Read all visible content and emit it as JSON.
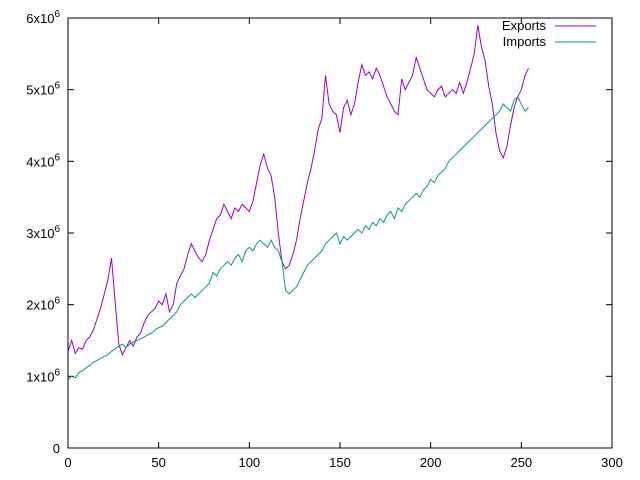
{
  "chart_data": {
    "type": "line",
    "xlim": [
      0,
      300
    ],
    "ylim": [
      0,
      6000000
    ],
    "x_ticks": [
      {
        "value": 0,
        "label": "0"
      },
      {
        "value": 50,
        "label": "50"
      },
      {
        "value": 100,
        "label": "100"
      },
      {
        "value": 150,
        "label": "150"
      },
      {
        "value": 200,
        "label": "200"
      },
      {
        "value": 250,
        "label": "250"
      },
      {
        "value": 300,
        "label": "300"
      }
    ],
    "y_ticks": [
      {
        "value": 0,
        "label": "0",
        "base": "0",
        "exp": ""
      },
      {
        "value": 1000000,
        "label": "1x10^6",
        "base": "1x10",
        "exp": "6"
      },
      {
        "value": 2000000,
        "label": "2x10^6",
        "base": "2x10",
        "exp": "6"
      },
      {
        "value": 3000000,
        "label": "3x10^6",
        "base": "3x10",
        "exp": "6"
      },
      {
        "value": 4000000,
        "label": "4x10^6",
        "base": "4x10",
        "exp": "6"
      },
      {
        "value": 5000000,
        "label": "5x10^6",
        "base": "5x10",
        "exp": "6"
      },
      {
        "value": 6000000,
        "label": "6x10^6",
        "base": "6x10",
        "exp": "6"
      }
    ],
    "grid": false,
    "legend_position": "top-right",
    "series": [
      {
        "name": "Exports",
        "color": "#9400d3",
        "x": [
          0,
          2,
          4,
          6,
          8,
          10,
          12,
          14,
          16,
          18,
          20,
          22,
          24,
          26,
          28,
          30,
          32,
          34,
          36,
          38,
          40,
          42,
          44,
          46,
          48,
          50,
          52,
          54,
          56,
          58,
          60,
          62,
          64,
          66,
          68,
          70,
          72,
          74,
          76,
          78,
          80,
          82,
          84,
          86,
          88,
          90,
          92,
          94,
          96,
          98,
          100,
          102,
          104,
          106,
          108,
          110,
          112,
          114,
          116,
          118,
          120,
          122,
          124,
          126,
          128,
          130,
          132,
          134,
          136,
          138,
          140,
          142,
          144,
          146,
          148,
          150,
          152,
          154,
          156,
          158,
          160,
          162,
          164,
          166,
          168,
          170,
          172,
          174,
          176,
          178,
          180,
          182,
          184,
          186,
          188,
          190,
          192,
          194,
          196,
          198,
          200,
          202,
          204,
          206,
          208,
          210,
          212,
          214,
          216,
          218,
          220,
          222,
          224,
          226,
          228,
          230,
          232,
          234,
          236,
          238,
          240,
          242,
          244,
          246,
          248,
          250,
          252,
          254
        ],
        "values": [
          1350000,
          1500000,
          1320000,
          1400000,
          1380000,
          1500000,
          1550000,
          1650000,
          1800000,
          1950000,
          2150000,
          2350000,
          2650000,
          2050000,
          1450000,
          1300000,
          1400000,
          1500000,
          1420000,
          1550000,
          1600000,
          1750000,
          1850000,
          1900000,
          1950000,
          2050000,
          2000000,
          2150000,
          1900000,
          2000000,
          2300000,
          2400000,
          2500000,
          2700000,
          2850000,
          2750000,
          2650000,
          2600000,
          2700000,
          2900000,
          3050000,
          3200000,
          3250000,
          3400000,
          3300000,
          3200000,
          3350000,
          3300000,
          3400000,
          3350000,
          3300000,
          3450000,
          3700000,
          3950000,
          4100000,
          3900000,
          3800000,
          3500000,
          3000000,
          2600000,
          2500000,
          2550000,
          2700000,
          2900000,
          3200000,
          3450000,
          3700000,
          3900000,
          4150000,
          4450000,
          4600000,
          5200000,
          4800000,
          4700000,
          4650000,
          4400000,
          4750000,
          4850000,
          4650000,
          4800000,
          5100000,
          5350000,
          5200000,
          5250000,
          5150000,
          5300000,
          5200000,
          5050000,
          4900000,
          4800000,
          4700000,
          4650000,
          5150000,
          5000000,
          5100000,
          5200000,
          5450000,
          5300000,
          5150000,
          5000000,
          4950000,
          4900000,
          5000000,
          5050000,
          4900000,
          4950000,
          5000000,
          4950000,
          5100000,
          4950000,
          5100000,
          5300000,
          5500000,
          5900000,
          5600000,
          5400000,
          5050000,
          4800000,
          4400000,
          4150000,
          4050000,
          4200000,
          4500000,
          4750000,
          4900000,
          5000000,
          5200000,
          5300000
        ]
      },
      {
        "name": "Imports",
        "color": "#009e73",
        "x": [
          0,
          2,
          4,
          6,
          8,
          10,
          12,
          14,
          16,
          18,
          20,
          22,
          24,
          26,
          28,
          30,
          32,
          34,
          36,
          38,
          40,
          42,
          44,
          46,
          48,
          50,
          52,
          54,
          56,
          58,
          60,
          62,
          64,
          66,
          68,
          70,
          72,
          74,
          76,
          78,
          80,
          82,
          84,
          86,
          88,
          90,
          92,
          94,
          96,
          98,
          100,
          102,
          104,
          106,
          108,
          110,
          112,
          114,
          116,
          118,
          120,
          122,
          124,
          126,
          128,
          130,
          132,
          134,
          136,
          138,
          140,
          142,
          144,
          146,
          148,
          150,
          152,
          154,
          156,
          158,
          160,
          162,
          164,
          166,
          168,
          170,
          172,
          174,
          176,
          178,
          180,
          182,
          184,
          186,
          188,
          190,
          192,
          194,
          196,
          198,
          200,
          202,
          204,
          206,
          208,
          210,
          212,
          214,
          216,
          218,
          220,
          222,
          224,
          226,
          228,
          230,
          232,
          234,
          236,
          238,
          240,
          242,
          244,
          246,
          248,
          250,
          252,
          254
        ],
        "values": [
          950000,
          1000000,
          980000,
          1050000,
          1080000,
          1120000,
          1150000,
          1200000,
          1220000,
          1250000,
          1280000,
          1300000,
          1350000,
          1380000,
          1420000,
          1450000,
          1400000,
          1450000,
          1480000,
          1500000,
          1520000,
          1550000,
          1580000,
          1600000,
          1650000,
          1680000,
          1700000,
          1750000,
          1800000,
          1850000,
          1900000,
          2000000,
          2050000,
          2100000,
          2150000,
          2100000,
          2150000,
          2200000,
          2250000,
          2300000,
          2450000,
          2400000,
          2500000,
          2550000,
          2600000,
          2550000,
          2650000,
          2700000,
          2600000,
          2750000,
          2800000,
          2750000,
          2850000,
          2900000,
          2850000,
          2800000,
          2900000,
          2800000,
          2750000,
          2600000,
          2200000,
          2150000,
          2200000,
          2250000,
          2350000,
          2450000,
          2550000,
          2600000,
          2650000,
          2700000,
          2750000,
          2850000,
          2900000,
          2950000,
          3000000,
          2850000,
          2950000,
          2900000,
          2950000,
          3000000,
          3050000,
          3000000,
          3100000,
          3050000,
          3150000,
          3100000,
          3200000,
          3150000,
          3250000,
          3300000,
          3200000,
          3350000,
          3300000,
          3400000,
          3450000,
          3500000,
          3550000,
          3500000,
          3600000,
          3650000,
          3750000,
          3700000,
          3800000,
          3850000,
          3900000,
          4000000,
          4050000,
          4100000,
          4150000,
          4200000,
          4250000,
          4300000,
          4350000,
          4400000,
          4450000,
          4500000,
          4550000,
          4600000,
          4650000,
          4700000,
          4800000,
          4750000,
          4700000,
          4850000,
          4900000,
          4800000,
          4700000,
          4750000
        ]
      }
    ]
  }
}
